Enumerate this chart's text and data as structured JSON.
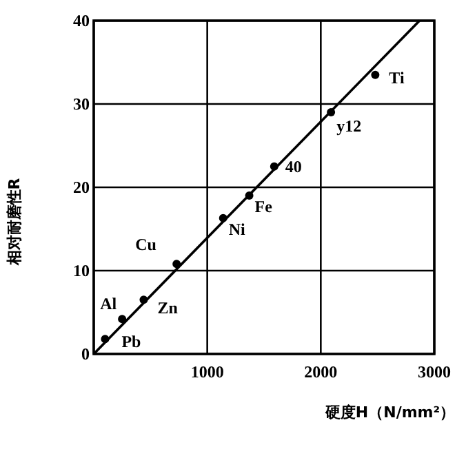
{
  "chart_data": {
    "type": "scatter",
    "xlabel": "硬度H（N/mm²）",
    "ylabel": "相对耐磨性R",
    "xlim": [
      0,
      3000
    ],
    "ylim": [
      0,
      40
    ],
    "xticks": [
      {
        "value": 0,
        "label": null
      },
      1000,
      2000,
      3000
    ],
    "yticks": [
      0,
      10,
      20,
      30,
      40
    ],
    "grid": true,
    "annotations": [
      {
        "text": "Pb",
        "x": 100,
        "y": 1.8
      },
      {
        "text": "Al",
        "x": 250,
        "y": 4.2
      },
      {
        "text": "Zn",
        "x": 440,
        "y": 6.5
      },
      {
        "text": "Cu",
        "x": 730,
        "y": 10.8
      },
      {
        "text": "Ni",
        "x": 1140,
        "y": 16.3
      },
      {
        "text": "Fe",
        "x": 1370,
        "y": 19
      },
      {
        "text": "40",
        "x": 1590,
        "y": 22.5
      },
      {
        "text": "y12",
        "x": 2090,
        "y": 29
      },
      {
        "text": "Ti",
        "x": 2480,
        "y": 33.5
      }
    ],
    "series": [
      {
        "type": "line",
        "color": "#000000",
        "x": [
          0,
          2870
        ],
        "values": [
          0,
          40
        ]
      },
      {
        "type": "scatter",
        "marker": "circle",
        "color": "#000000",
        "x": [
          100,
          250,
          440,
          730,
          1140,
          1370,
          1590,
          2090,
          2480
        ],
        "values": [
          1.8,
          4.2,
          6.5,
          10.8,
          16.3,
          19,
          22.5,
          29,
          33.5
        ]
      }
    ]
  }
}
